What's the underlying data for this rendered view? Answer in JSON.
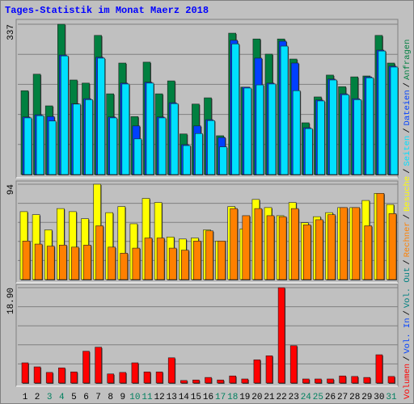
{
  "title": "Tages-Statistik im Monat Maerz 2018",
  "legend_separator": "/",
  "chart_data": [
    {
      "type": "bar",
      "ylim": [
        0,
        337
      ],
      "yticks": [
        337
      ],
      "series": [
        {
          "name": "Anfragen",
          "color": "#008040",
          "values": [
            188,
            225,
            154,
            337,
            212,
            205,
            312,
            181,
            250,
            130,
            252,
            181,
            210,
            91,
            158,
            172,
            87,
            317,
            196,
            304,
            270,
            304,
            259,
            116,
            174,
            223,
            197,
            219,
            221,
            312,
            250
          ]
        },
        {
          "name": "Dateien",
          "color": "#0040ff",
          "values": [
            129,
            134,
            130,
            268,
            159,
            170,
            263,
            129,
            205,
            109,
            207,
            129,
            161,
            67,
            109,
            123,
            83,
            301,
            196,
            261,
            205,
            299,
            250,
            105,
            167,
            214,
            181,
            170,
            219,
            279,
            243
          ]
        },
        {
          "name": "Seiten",
          "color": "#00e0ff",
          "values": [
            127,
            132,
            120,
            266,
            158,
            168,
            261,
            127,
            203,
            80,
            205,
            127,
            159,
            65,
            92,
            121,
            62,
            293,
            194,
            201,
            203,
            288,
            188,
            103,
            165,
            212,
            179,
            168,
            217,
            277,
            241
          ]
        }
      ]
    },
    {
      "type": "bar",
      "ylim": [
        0,
        94
      ],
      "yticks": [
        94
      ],
      "series": [
        {
          "name": "Besuche",
          "color": "#ffff00",
          "values": [
            67,
            64,
            49,
            70,
            67,
            60,
            94,
            66,
            72,
            55,
            80,
            76,
            42,
            40,
            41,
            49,
            38,
            72,
            50,
            79,
            71,
            63,
            76,
            56,
            62,
            66,
            71,
            71,
            78,
            85,
            74
          ]
        },
        {
          "name": "Rechner",
          "color": "#ff8000",
          "values": [
            38,
            35,
            33,
            34,
            32,
            34,
            53,
            32,
            26,
            31,
            41,
            41,
            31,
            29,
            38,
            48,
            38,
            70,
            63,
            70,
            63,
            62,
            70,
            54,
            59,
            64,
            71,
            71,
            53,
            85,
            65
          ]
        }
      ]
    },
    {
      "type": "bar",
      "ylim": [
        0,
        18.9
      ],
      "yticks": [
        {
          "value": 18.9,
          "label": "18.90"
        }
      ],
      "categories": [
        "1",
        "2",
        "3",
        "4",
        "5",
        "6",
        "7",
        "8",
        "9",
        "10",
        "11",
        "12",
        "13",
        "14",
        "15",
        "16",
        "17",
        "18",
        "19",
        "20",
        "21",
        "22",
        "23",
        "24",
        "25",
        "26",
        "27",
        "28",
        "29",
        "30",
        "31"
      ],
      "category_colors": [
        "#000000",
        "#000000",
        "#00805f",
        "#00805f",
        "#000000",
        "#000000",
        "#000000",
        "#000000",
        "#000000",
        "#00805f",
        "#00805f",
        "#000000",
        "#000000",
        "#000000",
        "#000000",
        "#000000",
        "#00805f",
        "#00805f",
        "#000000",
        "#000000",
        "#000000",
        "#000000",
        "#000000",
        "#00805f",
        "#00805f",
        "#000000",
        "#000000",
        "#000000",
        "#000000",
        "#000000",
        "#00805f"
      ],
      "series": [
        {
          "name": "Vol. Out",
          "color": "#008080"
        },
        {
          "name": "Vol. In",
          "color": "#0040ff"
        },
        {
          "name": "Volumen",
          "color": "#ff0000",
          "values": [
            4.0,
            3.2,
            2.1,
            3.0,
            2.2,
            6.3,
            7.1,
            1.8,
            2.1,
            4.0,
            2.2,
            2.2,
            5.0,
            0.5,
            0.6,
            1.1,
            0.6,
            1.4,
            0.8,
            4.6,
            5.4,
            18.9,
            7.4,
            0.8,
            0.8,
            0.8,
            1.4,
            1.3,
            1.1,
            5.6,
            1.3
          ]
        }
      ]
    }
  ]
}
